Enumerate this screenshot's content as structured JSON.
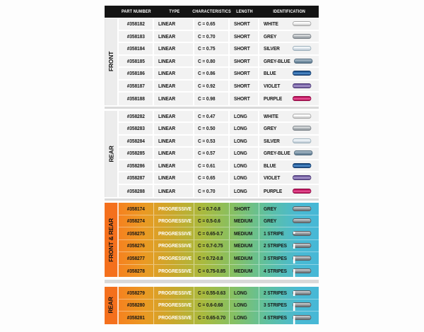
{
  "header": {
    "columns": [
      "PART NUMBER",
      "TYPE",
      "CHARACTERISTICS",
      "LENGTH",
      "IDENTIFICATION"
    ]
  },
  "sections": [
    {
      "label": "FRONT",
      "style": "linear",
      "rows": [
        {
          "part": "#358182",
          "type": "LINEAR",
          "characteristics": "C = 0.65",
          "length": "SHORT",
          "identification": "WHITE",
          "capsule": "white",
          "stripes": 0
        },
        {
          "part": "#358183",
          "type": "LINEAR",
          "characteristics": "C = 0.70",
          "length": "SHORT",
          "identification": "GREY",
          "capsule": "grey",
          "stripes": 0
        },
        {
          "part": "#358184",
          "type": "LINEAR",
          "characteristics": "C = 0.75",
          "length": "SHORT",
          "identification": "SILVER",
          "capsule": "silver",
          "stripes": 0
        },
        {
          "part": "#358185",
          "type": "LINEAR",
          "characteristics": "C = 0.80",
          "length": "SHORT",
          "identification": "GREY-BLUE",
          "capsule": "grey-blue",
          "stripes": 0
        },
        {
          "part": "#358186",
          "type": "LINEAR",
          "characteristics": "C = 0.86",
          "length": "SHORT",
          "identification": "BLUE",
          "capsule": "blue",
          "stripes": 0
        },
        {
          "part": "#358187",
          "type": "LINEAR",
          "characteristics": "C = 0.92",
          "length": "SHORT",
          "identification": "VIOLET",
          "capsule": "violet",
          "stripes": 0
        },
        {
          "part": "#358188",
          "type": "LINEAR",
          "characteristics": "C = 0.98",
          "length": "SHORT",
          "identification": "PURPLE",
          "capsule": "purple",
          "stripes": 0
        }
      ]
    },
    {
      "label": "REAR",
      "style": "linear",
      "rows": [
        {
          "part": "#358282",
          "type": "LINEAR",
          "characteristics": "C = 0.47",
          "length": "LONG",
          "identification": "WHITE",
          "capsule": "white",
          "stripes": 0
        },
        {
          "part": "#358283",
          "type": "LINEAR",
          "characteristics": "C = 0.50",
          "length": "LONG",
          "identification": "GREY",
          "capsule": "grey",
          "stripes": 0
        },
        {
          "part": "#358284",
          "type": "LINEAR",
          "characteristics": "C = 0.53",
          "length": "LONG",
          "identification": "SILVER",
          "capsule": "silver",
          "stripes": 0
        },
        {
          "part": "#358285",
          "type": "LINEAR",
          "characteristics": "C = 0.57",
          "length": "LONG",
          "identification": "GREY-BLUE",
          "capsule": "grey-blue",
          "stripes": 0
        },
        {
          "part": "#358286",
          "type": "LINEAR",
          "characteristics": "C = 0.61",
          "length": "LONG",
          "identification": "BLUE",
          "capsule": "blue",
          "stripes": 0
        },
        {
          "part": "#358287",
          "type": "LINEAR",
          "characteristics": "C = 0.65",
          "length": "LONG",
          "identification": "VIOLET",
          "capsule": "violet",
          "stripes": 0
        },
        {
          "part": "#358288",
          "type": "LINEAR",
          "characteristics": "C = 0.70",
          "length": "LONG",
          "identification": "PURPLE",
          "capsule": "purple",
          "stripes": 0
        }
      ]
    },
    {
      "label": "FRONT & REAR",
      "style": "progressive",
      "rows": [
        {
          "part": "#358174",
          "type": "PROGRESSIVE",
          "characteristics": "C = 0.7-0.8",
          "length": "SHORT",
          "identification": "GREY",
          "capsule": "stripe-grey",
          "stripes": 0
        },
        {
          "part": "#358274",
          "type": "PROGRESSIVE",
          "characteristics": "C = 0.5-0.6",
          "length": "MEDIUM",
          "identification": "GREY",
          "capsule": "stripe-grey",
          "stripes": 0
        },
        {
          "part": "#358275",
          "type": "PROGRESSIVE",
          "characteristics": "C = 0.65-0.7",
          "length": "MEDIUM",
          "identification": "1 STRIPE",
          "capsule": "stripe-grey",
          "stripes": 1
        },
        {
          "part": "#358276",
          "type": "PROGRESSIVE",
          "characteristics": "C = 0.7-0.75",
          "length": "MEDIUM",
          "identification": "2 STRIPES",
          "capsule": "stripe-grey",
          "stripes": 2
        },
        {
          "part": "#358277",
          "type": "PROGRESSIVE",
          "characteristics": "C = 0.72-0.8",
          "length": "MEDIUM",
          "identification": "3 STRIPES",
          "capsule": "stripe-grey",
          "stripes": 3
        },
        {
          "part": "#358278",
          "type": "PROGRESSIVE",
          "characteristics": "C = 0.75-0.85",
          "length": "MEDIUM",
          "identification": "4 STRIPES",
          "capsule": "stripe-grey",
          "stripes": 4
        }
      ]
    },
    {
      "label": "REAR",
      "style": "progressive",
      "rows": [
        {
          "part": "#358279",
          "type": "PROGRESSIVE",
          "characteristics": "C = 0.55-0.63",
          "length": "LONG",
          "identification": "2 STRIPES",
          "capsule": "stripe-grey",
          "stripes": 2
        },
        {
          "part": "#358280",
          "type": "PROGRESSIVE",
          "characteristics": "C = 0.6-0.68",
          "length": "LONG",
          "identification": "3 STRIPES",
          "capsule": "stripe-grey",
          "stripes": 3
        },
        {
          "part": "#358281",
          "type": "PROGRESSIVE",
          "characteristics": "C = 0.65-0.70",
          "length": "LONG",
          "identification": "4 STRIPES",
          "capsule": "stripe-grey",
          "stripes": 4
        }
      ]
    }
  ],
  "colors": {
    "header_bg": "#141414",
    "header_text": "#ffffff",
    "linear_row_bg": "#f2f2f2",
    "linear_label_bg": "#ececec",
    "section_label_orange": "#f4701d",
    "progressive_gradient": "linear-gradient(90deg,#f5821f 0%,#ea9a23 13%,#c9a82c 27%,#a9ba3e 42%,#84c065 58%,#5ec0a0 74%,#49b9d3 90%,#47b8d6 100%)",
    "gap_strip": "#d9d9d9",
    "capsules": {
      "white": {
        "top": "#ffffff",
        "mid": "#ededed",
        "bot": "#c2c2c2",
        "border": "#a9a9a9"
      },
      "grey": {
        "top": "#d8dbdd",
        "mid": "#b7bcc0",
        "bot": "#8e959b",
        "border": "#7d848a"
      },
      "silver": {
        "top": "#f3f7fa",
        "mid": "#dfe7ed",
        "bot": "#b9c7d1",
        "border": "#9db0bc"
      },
      "grey-blue": {
        "top": "#a4b6c3",
        "mid": "#8099ab",
        "bot": "#5c788d",
        "border": "#516a7d"
      },
      "blue": {
        "top": "#1e548f",
        "mid": "#5b9bd9",
        "bot": "#1c4a82",
        "border": "#163c6b"
      },
      "violet": {
        "top": "#6f5a9e",
        "mid": "#b4a5d6",
        "bot": "#644e92",
        "border": "#4f3d77"
      },
      "purple": {
        "top": "#c0145f",
        "mid": "#ee5f9f",
        "bot": "#b80f56",
        "border": "#8f0c44"
      },
      "stripe-grey": {
        "top": "#c0c4c7",
        "mid": "#999fa4",
        "bot": "#686e72",
        "border": "#5a6064"
      }
    }
  }
}
